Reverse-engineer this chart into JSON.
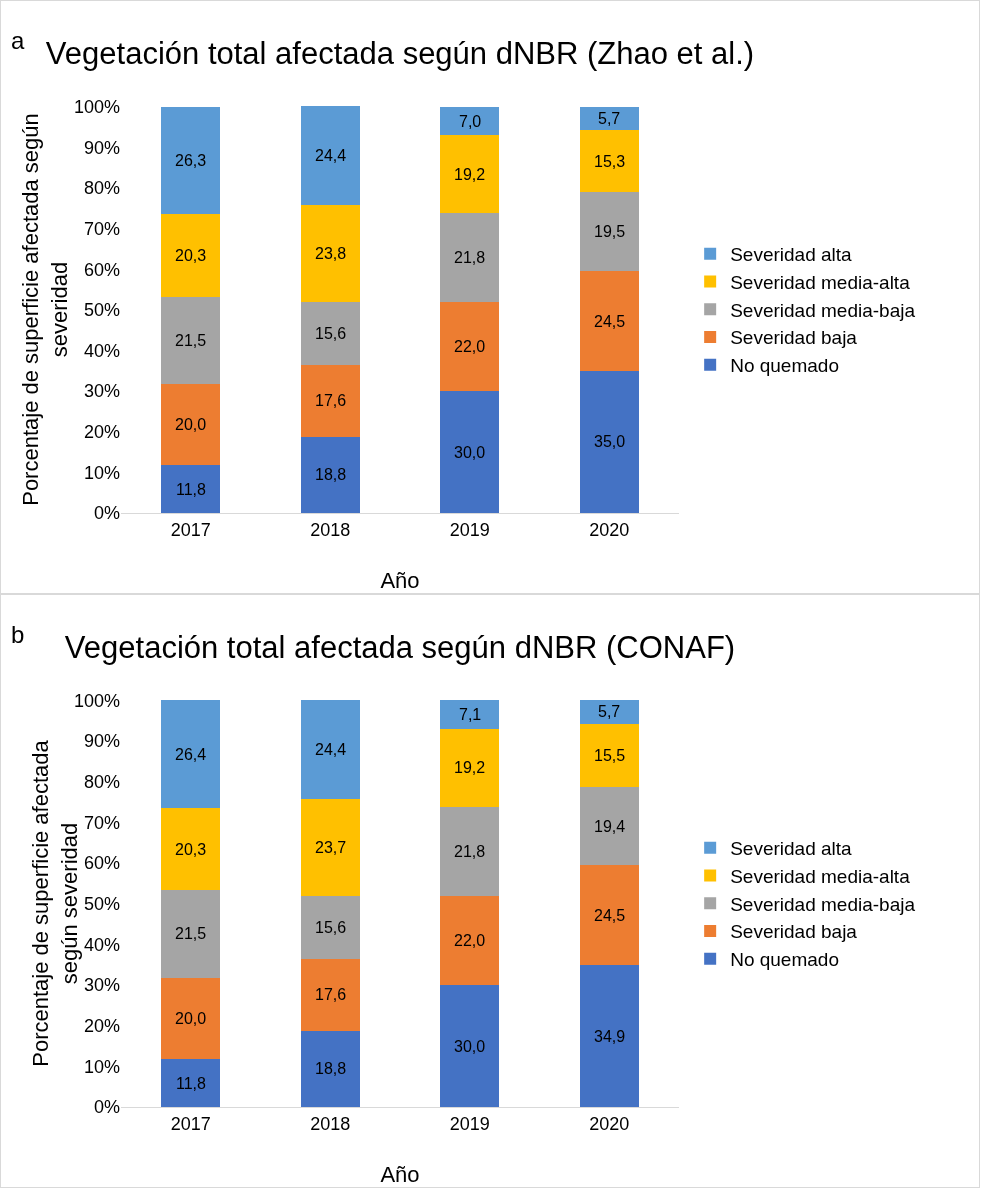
{
  "chart_data": [
    {
      "type": "bar",
      "stacked": true,
      "title": "Vegetación total afectada según dNBR (Zhao et al.)",
      "xlabel": "Año",
      "ylabel": "Porcentaje de superficie afectada según\nseveridad",
      "annotations": [
        "a"
      ],
      "categories": [
        "2017",
        "2018",
        "2019",
        "2020"
      ],
      "ylim": [
        0,
        100.2
      ],
      "yticks": [
        {
          "value": 0,
          "label": "0%"
        },
        {
          "value": 10,
          "label": "10%"
        },
        {
          "value": 20,
          "label": "20%"
        },
        {
          "value": 30,
          "label": "30%"
        },
        {
          "value": 40,
          "label": "40%"
        },
        {
          "value": 50,
          "label": "50%"
        },
        {
          "value": 60,
          "label": "60%"
        },
        {
          "value": 70,
          "label": "70%"
        },
        {
          "value": 80,
          "label": "80%"
        },
        {
          "value": 90,
          "label": "90%"
        },
        {
          "value": 100,
          "label": "100%"
        }
      ],
      "legend": "right",
      "series": [
        {
          "name": "No quemado",
          "color": "#4472c4",
          "values": [
            11.8,
            18.8,
            30.0,
            35.0
          ],
          "value_labels": [
            "11,8",
            "18,8",
            "30,0",
            "35,0"
          ]
        },
        {
          "name": "Severidad baja",
          "color": "#ed7d31",
          "values": [
            20.0,
            17.6,
            22.0,
            24.5
          ],
          "value_labels": [
            "20,0",
            "17,6",
            "22,0",
            "24,5"
          ]
        },
        {
          "name": "Severidad media-baja",
          "color": "#a5a5a5",
          "values": [
            21.5,
            15.6,
            21.8,
            19.5
          ],
          "value_labels": [
            "21,5",
            "15,6",
            "21,8",
            "19,5"
          ]
        },
        {
          "name": "Severidad media-alta",
          "color": "#ffc000",
          "values": [
            20.3,
            23.8,
            19.2,
            15.3
          ],
          "value_labels": [
            "20,3",
            "23,8",
            "19,2",
            "15,3"
          ]
        },
        {
          "name": "Severidad alta",
          "color": "#5b9bd5",
          "values": [
            26.3,
            24.4,
            7.0,
            5.7
          ],
          "value_labels": [
            "26,3",
            "24,4",
            "7,0",
            "5,7"
          ]
        }
      ]
    },
    {
      "type": "bar",
      "stacked": true,
      "title": "Vegetación total afectada según dNBR (CONAF)",
      "xlabel": "Año",
      "ylabel": "Porcentaje de superficie afectada\nsegún severidad",
      "annotations": [
        "b"
      ],
      "categories": [
        "2017",
        "2018",
        "2019",
        "2020"
      ],
      "ylim": [
        0,
        100.1
      ],
      "yticks": [
        {
          "value": 0,
          "label": "0%"
        },
        {
          "value": 10,
          "label": "10%"
        },
        {
          "value": 20,
          "label": "20%"
        },
        {
          "value": 30,
          "label": "30%"
        },
        {
          "value": 40,
          "label": "40%"
        },
        {
          "value": 50,
          "label": "50%"
        },
        {
          "value": 60,
          "label": "60%"
        },
        {
          "value": 70,
          "label": "70%"
        },
        {
          "value": 80,
          "label": "80%"
        },
        {
          "value": 90,
          "label": "90%"
        },
        {
          "value": 100,
          "label": "100%"
        }
      ],
      "legend": "right",
      "series": [
        {
          "name": "No quemado",
          "color": "#4472c4",
          "values": [
            11.8,
            18.8,
            30.0,
            34.9
          ],
          "value_labels": [
            "11,8",
            "18,8",
            "30,0",
            "34,9"
          ]
        },
        {
          "name": "Severidad baja",
          "color": "#ed7d31",
          "values": [
            20.0,
            17.6,
            22.0,
            24.5
          ],
          "value_labels": [
            "20,0",
            "17,6",
            "22,0",
            "24,5"
          ]
        },
        {
          "name": "Severidad media-baja",
          "color": "#a5a5a5",
          "values": [
            21.5,
            15.6,
            21.8,
            19.4
          ],
          "value_labels": [
            "21,5",
            "15,6",
            "21,8",
            "19,4"
          ]
        },
        {
          "name": "Severidad media-alta",
          "color": "#ffc000",
          "values": [
            20.3,
            23.7,
            19.2,
            15.5
          ],
          "value_labels": [
            "20,3",
            "23,7",
            "19,2",
            "15,5"
          ]
        },
        {
          "name": "Severidad alta",
          "color": "#5b9bd5",
          "values": [
            26.4,
            24.4,
            7.1,
            5.7
          ],
          "value_labels": [
            "26,4",
            "24,4",
            "7,1",
            "5,7"
          ]
        }
      ]
    }
  ]
}
